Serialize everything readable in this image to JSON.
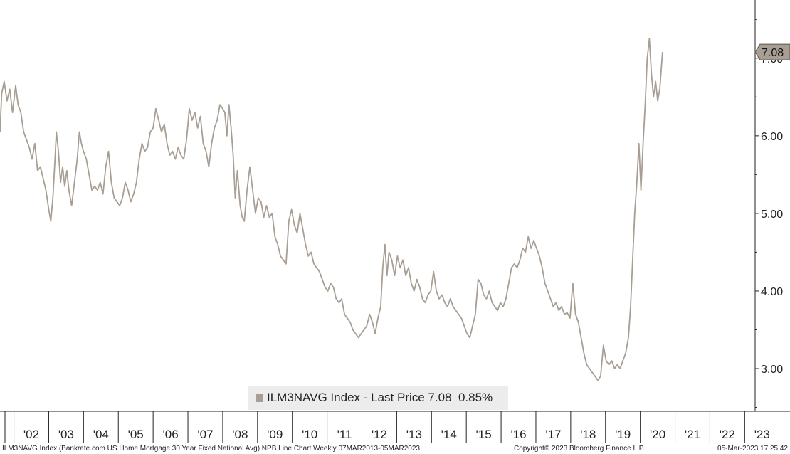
{
  "legend": {
    "text": "ILM3NAVG Index - Last Price 7.08  0.85%"
  },
  "last_price_tag": "7.08",
  "footer": {
    "left": "ILM3NAVG Index (Bankrate.com US Home Mortgage 30 Year Fixed National Avg) NPB Line Chart  Weekly 07MAR2013-05MAR2023",
    "mid": "Copyright© 2023 Bloomberg Finance L.P.",
    "right": "05-Mar-2023 17:25:42"
  },
  "colors": {
    "line": "#a89e93",
    "tag": "#a89e93",
    "axis": "#222222"
  },
  "chart_data": {
    "type": "line",
    "x_tick_labels": [
      "'02",
      "'03",
      "'04",
      "'05",
      "'06",
      "'07",
      "'08",
      "'09",
      "'10",
      "'11",
      "'12",
      "'13",
      "'14",
      "'15",
      "'16",
      "'17",
      "'18",
      "'19",
      "'20",
      "'21",
      "'22",
      "'23"
    ],
    "y_tick_labels": [
      "3.00",
      "4.00",
      "5.00",
      "6.00",
      "7.00"
    ],
    "ylim": [
      2.45,
      7.75
    ],
    "xlim": [
      2001.6,
      2023.3
    ],
    "grid": false,
    "legend_position": "bottom-center",
    "series": [
      {
        "values": [
          [
            2001.6,
            6.05
          ],
          [
            2001.65,
            6.55
          ],
          [
            2001.72,
            6.7
          ],
          [
            2001.8,
            6.45
          ],
          [
            2001.88,
            6.6
          ],
          [
            2001.96,
            6.3
          ],
          [
            2002.05,
            6.65
          ],
          [
            2002.12,
            6.4
          ],
          [
            2002.2,
            6.3
          ],
          [
            2002.28,
            6.05
          ],
          [
            2002.36,
            5.95
          ],
          [
            2002.44,
            5.85
          ],
          [
            2002.52,
            5.7
          ],
          [
            2002.6,
            5.9
          ],
          [
            2002.68,
            5.55
          ],
          [
            2002.76,
            5.6
          ],
          [
            2002.84,
            5.45
          ],
          [
            2002.92,
            5.3
          ],
          [
            2003.0,
            5.05
          ],
          [
            2003.06,
            4.9
          ],
          [
            2003.12,
            5.2
          ],
          [
            2003.18,
            5.7
          ],
          [
            2003.22,
            6.05
          ],
          [
            2003.28,
            5.8
          ],
          [
            2003.34,
            5.4
          ],
          [
            2003.4,
            5.6
          ],
          [
            2003.46,
            5.35
          ],
          [
            2003.52,
            5.55
          ],
          [
            2003.58,
            5.3
          ],
          [
            2003.66,
            5.1
          ],
          [
            2003.74,
            5.4
          ],
          [
            2003.82,
            5.7
          ],
          [
            2003.88,
            6.05
          ],
          [
            2003.94,
            5.9
          ],
          [
            2004.0,
            5.8
          ],
          [
            2004.08,
            5.7
          ],
          [
            2004.16,
            5.5
          ],
          [
            2004.24,
            5.3
          ],
          [
            2004.32,
            5.35
          ],
          [
            2004.4,
            5.3
          ],
          [
            2004.48,
            5.4
          ],
          [
            2004.56,
            5.25
          ],
          [
            2004.64,
            5.6
          ],
          [
            2004.72,
            5.8
          ],
          [
            2004.8,
            5.4
          ],
          [
            2004.88,
            5.2
          ],
          [
            2004.96,
            5.15
          ],
          [
            2005.04,
            5.1
          ],
          [
            2005.12,
            5.2
          ],
          [
            2005.2,
            5.4
          ],
          [
            2005.28,
            5.3
          ],
          [
            2005.36,
            5.15
          ],
          [
            2005.44,
            5.25
          ],
          [
            2005.52,
            5.4
          ],
          [
            2005.6,
            5.7
          ],
          [
            2005.68,
            5.9
          ],
          [
            2005.76,
            5.8
          ],
          [
            2005.84,
            5.85
          ],
          [
            2005.92,
            6.05
          ],
          [
            2006.0,
            6.1
          ],
          [
            2006.08,
            6.35
          ],
          [
            2006.16,
            6.2
          ],
          [
            2006.24,
            6.05
          ],
          [
            2006.32,
            6.15
          ],
          [
            2006.4,
            5.9
          ],
          [
            2006.48,
            5.75
          ],
          [
            2006.56,
            5.8
          ],
          [
            2006.64,
            5.7
          ],
          [
            2006.72,
            5.85
          ],
          [
            2006.8,
            5.75
          ],
          [
            2006.88,
            5.7
          ],
          [
            2006.96,
            5.95
          ],
          [
            2007.04,
            6.35
          ],
          [
            2007.12,
            6.2
          ],
          [
            2007.2,
            6.3
          ],
          [
            2007.28,
            6.1
          ],
          [
            2007.36,
            6.25
          ],
          [
            2007.44,
            5.9
          ],
          [
            2007.52,
            5.8
          ],
          [
            2007.6,
            5.6
          ],
          [
            2007.68,
            5.9
          ],
          [
            2007.76,
            6.1
          ],
          [
            2007.84,
            6.2
          ],
          [
            2007.92,
            6.4
          ],
          [
            2008.0,
            6.35
          ],
          [
            2008.06,
            6.3
          ],
          [
            2008.12,
            6.0
          ],
          [
            2008.18,
            6.4
          ],
          [
            2008.24,
            6.1
          ],
          [
            2008.3,
            5.75
          ],
          [
            2008.36,
            5.2
          ],
          [
            2008.42,
            5.55
          ],
          [
            2008.5,
            5.1
          ],
          [
            2008.56,
            4.95
          ],
          [
            2008.62,
            4.9
          ],
          [
            2008.7,
            5.3
          ],
          [
            2008.78,
            5.6
          ],
          [
            2008.86,
            5.3
          ],
          [
            2008.94,
            5.0
          ],
          [
            2009.02,
            5.2
          ],
          [
            2009.1,
            5.15
          ],
          [
            2009.18,
            4.95
          ],
          [
            2009.26,
            5.1
          ],
          [
            2009.34,
            4.95
          ],
          [
            2009.42,
            5.0
          ],
          [
            2009.5,
            4.7
          ],
          [
            2009.58,
            4.6
          ],
          [
            2009.66,
            4.45
          ],
          [
            2009.74,
            4.4
          ],
          [
            2009.82,
            4.35
          ],
          [
            2009.9,
            4.9
          ],
          [
            2009.98,
            5.05
          ],
          [
            2010.06,
            4.85
          ],
          [
            2010.14,
            4.75
          ],
          [
            2010.22,
            5.0
          ],
          [
            2010.3,
            4.8
          ],
          [
            2010.38,
            4.6
          ],
          [
            2010.46,
            4.45
          ],
          [
            2010.54,
            4.5
          ],
          [
            2010.62,
            4.35
          ],
          [
            2010.7,
            4.3
          ],
          [
            2010.78,
            4.25
          ],
          [
            2010.86,
            4.15
          ],
          [
            2010.94,
            4.05
          ],
          [
            2011.02,
            4.0
          ],
          [
            2011.1,
            4.1
          ],
          [
            2011.18,
            4.05
          ],
          [
            2011.26,
            3.9
          ],
          [
            2011.34,
            3.85
          ],
          [
            2011.42,
            3.9
          ],
          [
            2011.5,
            3.7
          ],
          [
            2011.58,
            3.65
          ],
          [
            2011.66,
            3.6
          ],
          [
            2011.74,
            3.5
          ],
          [
            2011.82,
            3.45
          ],
          [
            2011.9,
            3.4
          ],
          [
            2011.98,
            3.45
          ],
          [
            2012.06,
            3.5
          ],
          [
            2012.14,
            3.55
          ],
          [
            2012.22,
            3.7
          ],
          [
            2012.3,
            3.6
          ],
          [
            2012.38,
            3.45
          ],
          [
            2012.46,
            3.65
          ],
          [
            2012.54,
            3.8
          ],
          [
            2012.6,
            4.3
          ],
          [
            2012.66,
            4.6
          ],
          [
            2012.72,
            4.2
          ],
          [
            2012.78,
            4.5
          ],
          [
            2012.86,
            4.4
          ],
          [
            2012.94,
            4.2
          ],
          [
            2013.02,
            4.45
          ],
          [
            2013.1,
            4.3
          ],
          [
            2013.18,
            4.4
          ],
          [
            2013.26,
            4.2
          ],
          [
            2013.34,
            4.3
          ],
          [
            2013.42,
            4.1
          ],
          [
            2013.5,
            4.0
          ],
          [
            2013.58,
            4.15
          ],
          [
            2013.66,
            4.05
          ],
          [
            2013.74,
            3.9
          ],
          [
            2013.82,
            3.85
          ],
          [
            2013.9,
            3.95
          ],
          [
            2013.98,
            4.0
          ],
          [
            2014.06,
            4.25
          ],
          [
            2014.14,
            4.0
          ],
          [
            2014.22,
            3.9
          ],
          [
            2014.3,
            3.95
          ],
          [
            2014.38,
            3.85
          ],
          [
            2014.46,
            3.8
          ],
          [
            2014.54,
            3.9
          ],
          [
            2014.62,
            3.8
          ],
          [
            2014.7,
            3.75
          ],
          [
            2014.78,
            3.7
          ],
          [
            2014.86,
            3.65
          ],
          [
            2014.94,
            3.55
          ],
          [
            2015.02,
            3.45
          ],
          [
            2015.1,
            3.4
          ],
          [
            2015.18,
            3.55
          ],
          [
            2015.26,
            3.7
          ],
          [
            2015.34,
            4.15
          ],
          [
            2015.42,
            4.1
          ],
          [
            2015.5,
            3.95
          ],
          [
            2015.58,
            3.9
          ],
          [
            2015.66,
            4.0
          ],
          [
            2015.74,
            3.85
          ],
          [
            2015.82,
            3.8
          ],
          [
            2015.9,
            3.75
          ],
          [
            2015.98,
            3.85
          ],
          [
            2016.06,
            3.8
          ],
          [
            2016.14,
            3.9
          ],
          [
            2016.22,
            4.1
          ],
          [
            2016.3,
            4.3
          ],
          [
            2016.38,
            4.35
          ],
          [
            2016.46,
            4.3
          ],
          [
            2016.54,
            4.4
          ],
          [
            2016.62,
            4.55
          ],
          [
            2016.7,
            4.5
          ],
          [
            2016.78,
            4.7
          ],
          [
            2016.86,
            4.55
          ],
          [
            2016.94,
            4.65
          ],
          [
            2017.02,
            4.55
          ],
          [
            2017.1,
            4.45
          ],
          [
            2017.18,
            4.3
          ],
          [
            2017.26,
            4.1
          ],
          [
            2017.34,
            4.0
          ],
          [
            2017.42,
            3.9
          ],
          [
            2017.5,
            3.8
          ],
          [
            2017.58,
            3.85
          ],
          [
            2017.66,
            3.75
          ],
          [
            2017.74,
            3.8
          ],
          [
            2017.82,
            3.7
          ],
          [
            2017.9,
            3.72
          ],
          [
            2017.98,
            3.65
          ],
          [
            2018.06,
            4.1
          ],
          [
            2018.14,
            3.7
          ],
          [
            2018.22,
            3.6
          ],
          [
            2018.3,
            3.4
          ],
          [
            2018.38,
            3.2
          ],
          [
            2018.46,
            3.05
          ],
          [
            2018.54,
            3.0
          ],
          [
            2018.62,
            2.95
          ],
          [
            2018.7,
            2.9
          ],
          [
            2018.78,
            2.85
          ],
          [
            2018.86,
            2.9
          ],
          [
            2018.94,
            3.3
          ],
          [
            2019.02,
            3.1
          ],
          [
            2019.1,
            3.05
          ],
          [
            2019.18,
            3.1
          ],
          [
            2019.26,
            3.0
          ],
          [
            2019.34,
            3.05
          ],
          [
            2019.42,
            3.0
          ],
          [
            2019.5,
            3.1
          ],
          [
            2019.58,
            3.2
          ],
          [
            2019.66,
            3.4
          ],
          [
            2019.72,
            3.8
          ],
          [
            2019.78,
            4.4
          ],
          [
            2019.84,
            5.0
          ],
          [
            2019.9,
            5.4
          ],
          [
            2019.96,
            5.9
          ],
          [
            2020.02,
            5.3
          ],
          [
            2020.08,
            5.9
          ],
          [
            2020.14,
            6.4
          ],
          [
            2020.2,
            7.0
          ],
          [
            2020.26,
            7.25
          ],
          [
            2020.32,
            6.8
          ],
          [
            2020.38,
            6.5
          ],
          [
            2020.44,
            6.7
          ],
          [
            2020.5,
            6.45
          ],
          [
            2020.56,
            6.6
          ],
          [
            2020.64,
            7.08
          ]
        ]
      }
    ]
  }
}
